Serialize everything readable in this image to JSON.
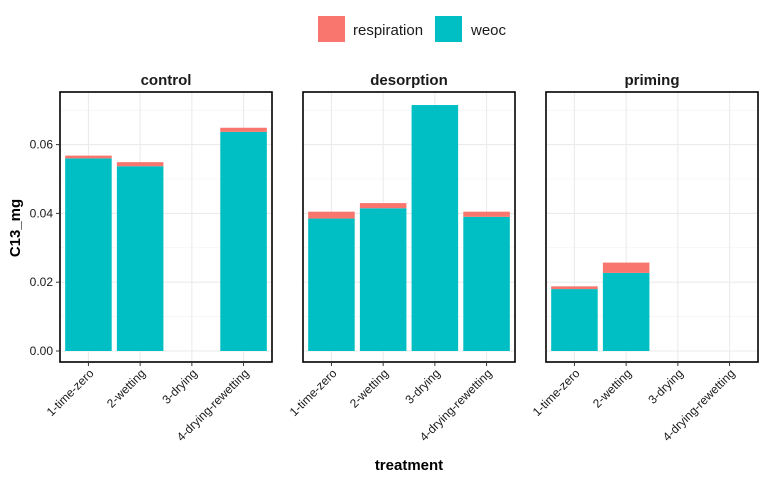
{
  "chart_data": {
    "type": "bar",
    "stacked": true,
    "facet_by": "panel",
    "xlabel": "treatment",
    "ylabel": "C13_mg",
    "ylim": [
      0,
      0.075
    ],
    "y_ticks": [
      0.0,
      0.02,
      0.04,
      0.06
    ],
    "y_tick_labels": [
      "0.00",
      "0.02",
      "0.04",
      "0.06"
    ],
    "grid": true,
    "legend_position": "top",
    "categories": [
      "1-time-zero",
      "2-wetting",
      "3-drying",
      "4-drying-rewetting"
    ],
    "series": [
      {
        "name": "respiration",
        "color": "#F8766D"
      },
      {
        "name": "weoc",
        "color": "#00BFC4"
      }
    ],
    "panels": [
      {
        "title": "control",
        "respiration": [
          0.0008,
          0.0012,
          null,
          0.0012
        ],
        "weoc": [
          0.056,
          0.0537,
          null,
          0.0637
        ]
      },
      {
        "title": "desorption",
        "respiration": [
          0.002,
          0.0015,
          null,
          0.0015
        ],
        "weoc": [
          0.0385,
          0.0415,
          0.0715,
          0.039
        ]
      },
      {
        "title": "priming",
        "respiration": [
          0.0008,
          0.003,
          null,
          null
        ],
        "weoc": [
          0.018,
          0.0227,
          null,
          null
        ]
      }
    ]
  }
}
